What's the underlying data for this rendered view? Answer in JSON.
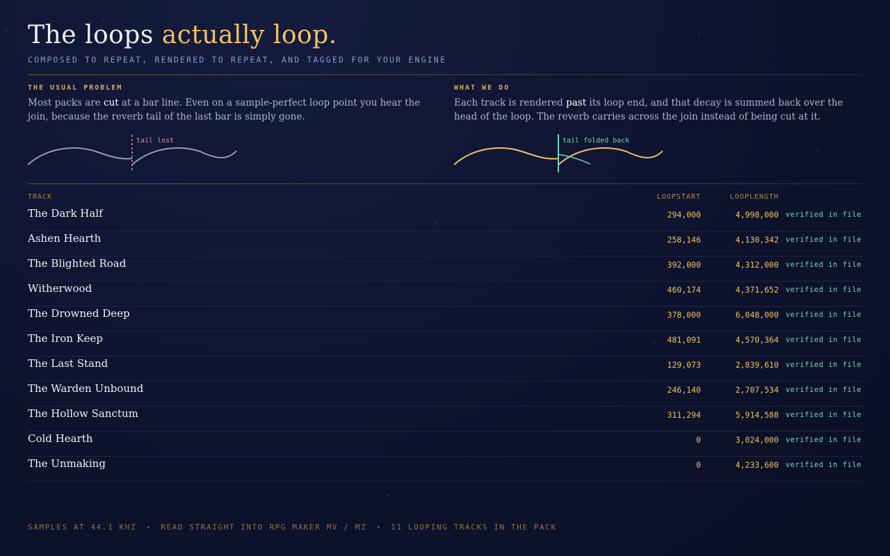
{
  "header": {
    "title_plain": "The loops",
    "title_accent": "actually loop.",
    "subtitle": "COMPOSED TO REPEAT, RENDERED TO REPEAT, AND TAGGED FOR YOUR ENGINE"
  },
  "problem": {
    "label": "THE USUAL PROBLEM",
    "text": [
      "Most packs are ",
      "cut",
      " at a bar line. Even on a sample-perfect loop point you hear the join, because the reverb tail of the last bar is simply gone."
    ],
    "diagram_label": "tail lost"
  },
  "solution": {
    "label": "WHAT WE DO",
    "text": [
      "Each track is rendered ",
      "past",
      " its loop end, and that decay is summed back over the head of the loop. The reverb carries across the join instead of being cut at it."
    ],
    "diagram_label": "tail folded back"
  },
  "table": {
    "columns": [
      "TRACK",
      "LOOPSTART",
      "LOOPLENGTH"
    ],
    "rows": [
      [
        "The Dark Half",
        "294,000",
        "4,998,000",
        "verified in file"
      ],
      [
        "Ashen Hearth",
        "258,146",
        "4,130,342",
        "verified in file"
      ],
      [
        "The Blighted Road",
        "392,000",
        "4,312,000",
        "verified in file"
      ],
      [
        "Witherwood",
        "460,174",
        "4,371,652",
        "verified in file"
      ],
      [
        "The Drowned Deep",
        "378,000",
        "6,048,000",
        "verified in file"
      ],
      [
        "The Iron Keep",
        "481,091",
        "4,570,364",
        "verified in file"
      ],
      [
        "The Last Stand",
        "129,073",
        "2,839,610",
        "verified in file"
      ],
      [
        "The Warden Unbound",
        "246,140",
        "2,707,534",
        "verified in file"
      ],
      [
        "The Hollow Sanctum",
        "311,294",
        "5,914,588",
        "verified in file"
      ],
      [
        "Cold Hearth",
        "0",
        "3,024,000",
        "verified in file"
      ],
      [
        "The Unmaking",
        "0",
        "4,233,600",
        "verified in file"
      ]
    ]
  },
  "footer": {
    "items": [
      "SAMPLES AT 44.1 KHZ",
      "READ STRAIGHT INTO RPG MAKER MV / MZ",
      "11 LOOPING TRACKS IN THE PACK"
    ]
  }
}
